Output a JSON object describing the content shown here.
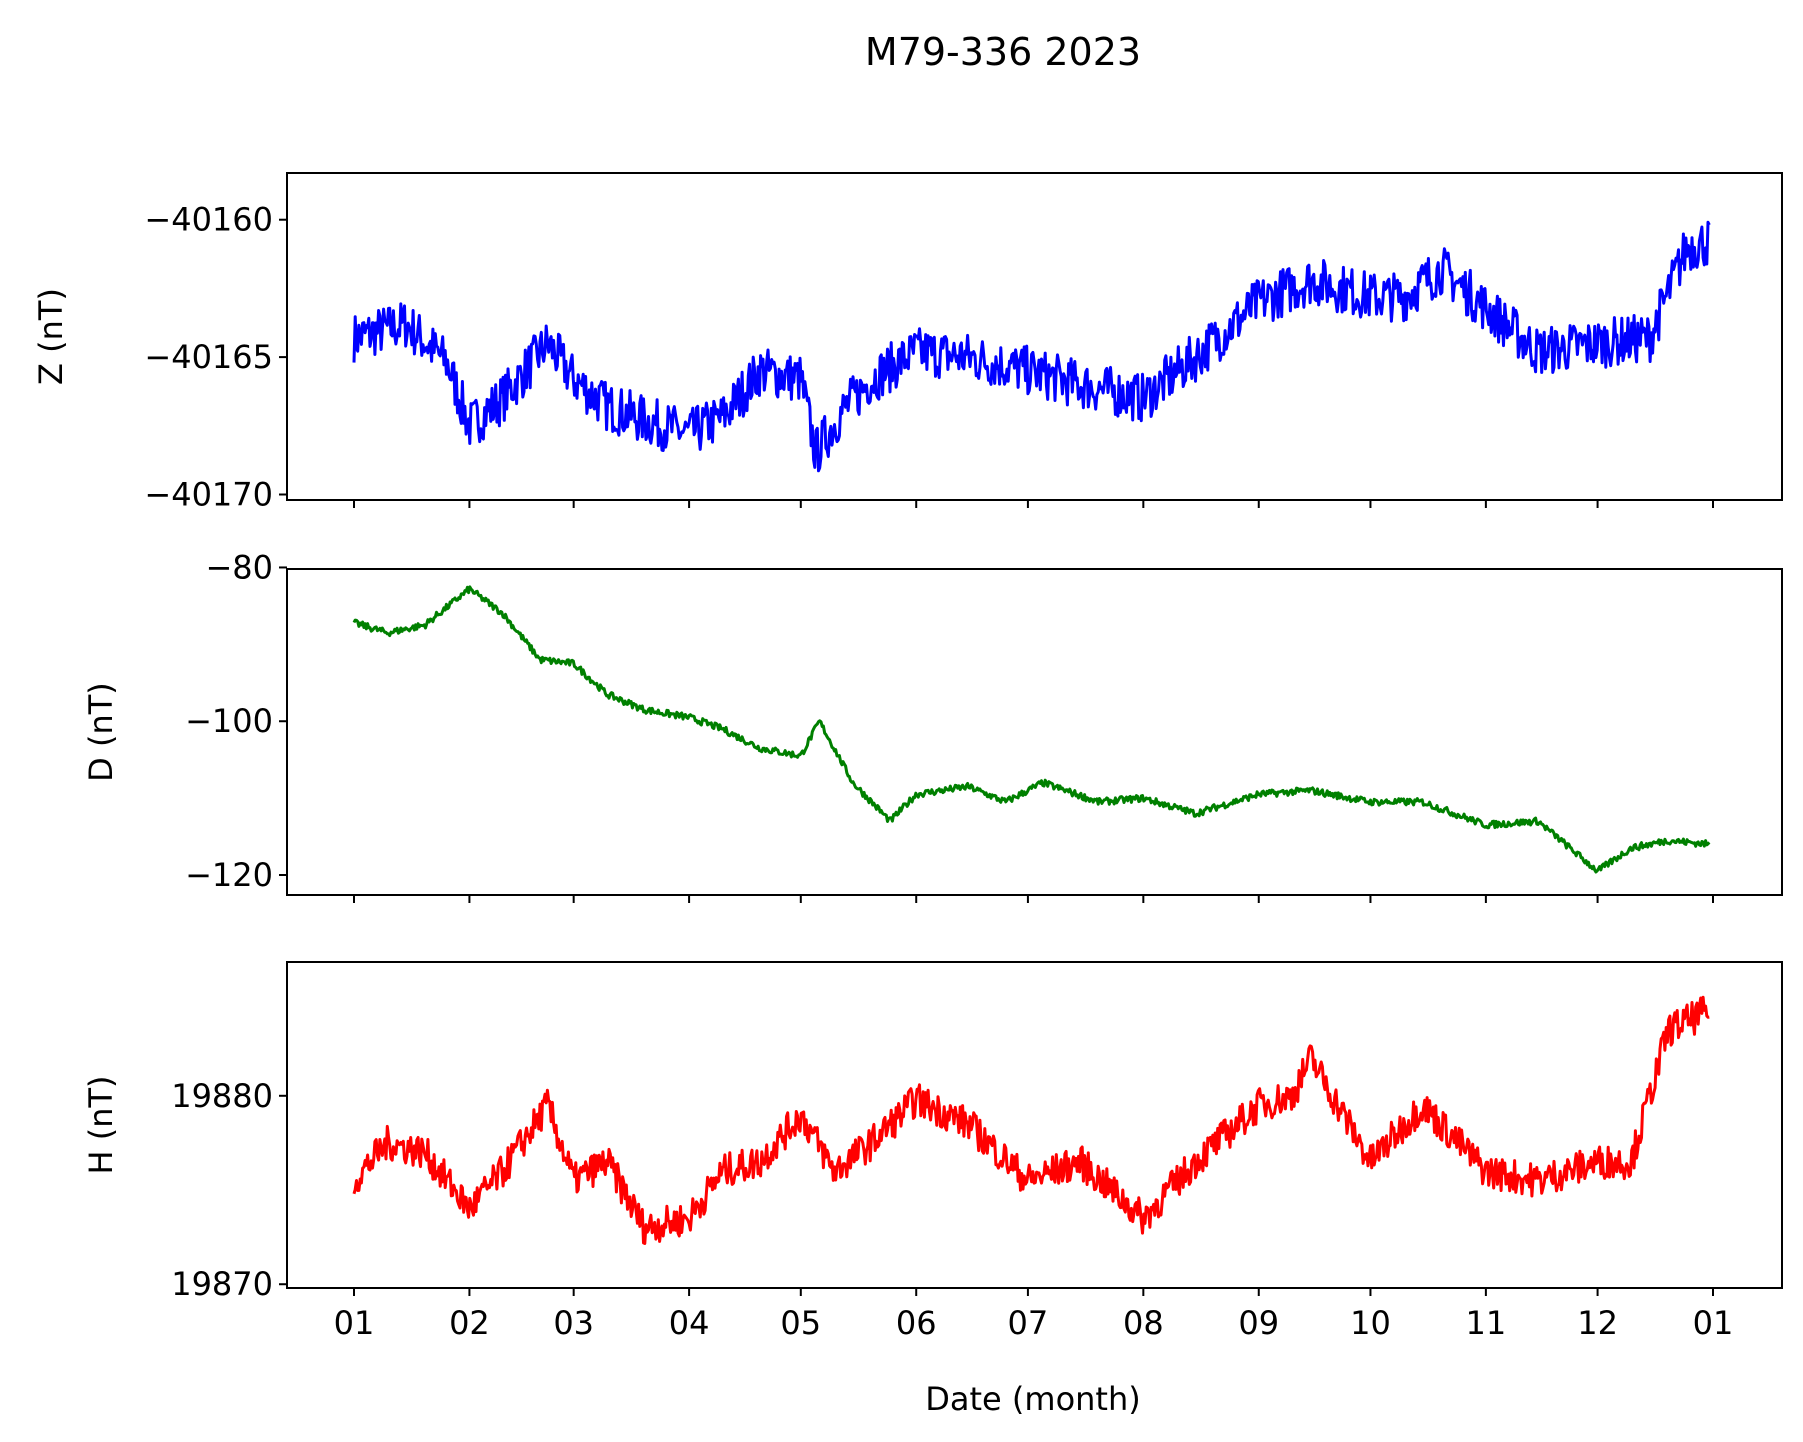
{
  "chart_data": {
    "title": "M79-336 2023",
    "type": "line",
    "shared_x": {
      "label": "Date (month)",
      "range": [
        "2023-01-01",
        "2024-01-01"
      ],
      "tick_values": [
        "2023-01-01",
        "2023-02-01",
        "2023-03-01",
        "2023-04-01",
        "2023-05-01",
        "2023-06-01",
        "2023-07-01",
        "2023-08-01",
        "2023-09-01",
        "2023-10-01",
        "2023-11-01",
        "2023-12-01",
        "2024-01-01"
      ],
      "tick_labels": [
        "01",
        "02",
        "03",
        "04",
        "05",
        "06",
        "07",
        "08",
        "09",
        "10",
        "11",
        "12",
        "01"
      ]
    },
    "panels": [
      {
        "id": "Z",
        "ylabel": "Z (nT)",
        "color": "#0000ff",
        "ylim": [
          -40170.2,
          -40158.3
        ],
        "yticks": [
          -40160,
          -40165,
          -40170
        ],
        "ytick_labels": [
          "−40160",
          "−40165",
          "−40170"
        ],
        "noise": 0.9,
        "x": [
          "2023-01-01",
          "2023-01-15",
          "2023-01-26",
          "2023-02-01",
          "2023-02-10",
          "2023-02-22",
          "2023-03-01",
          "2023-03-10",
          "2023-03-20",
          "2023-04-01",
          "2023-04-10",
          "2023-04-20",
          "2023-05-01",
          "2023-05-05",
          "2023-05-12",
          "2023-05-20",
          "2023-06-01",
          "2023-06-15",
          "2023-07-01",
          "2023-07-15",
          "2023-08-01",
          "2023-08-15",
          "2023-09-01",
          "2023-09-15",
          "2023-10-01",
          "2023-10-10",
          "2023-10-20",
          "2023-11-01",
          "2023-11-15",
          "2023-12-01",
          "2023-12-15",
          "2023-12-25",
          "2023-12-31"
        ],
        "y": [
          -40164.3,
          -40163.8,
          -40165.2,
          -40167.5,
          -40166.5,
          -40164.5,
          -40165.8,
          -40166.8,
          -40167.3,
          -40167.8,
          -40167.2,
          -40165.5,
          -40165.8,
          -40168.5,
          -40167.0,
          -40165.8,
          -40164.8,
          -40165.0,
          -40165.5,
          -40166.0,
          -40166.5,
          -40165.0,
          -40163.0,
          -40162.2,
          -40162.8,
          -40162.8,
          -40161.8,
          -40163.2,
          -40164.8,
          -40164.5,
          -40164.3,
          -40161.0,
          -40160.8
        ]
      },
      {
        "id": "D",
        "ylabel": "D (nT)",
        "color": "#008000",
        "ylim": [
          -122.6,
          -80.2
        ],
        "yticks": [
          -80,
          -100,
          -120
        ],
        "ytick_labels": [
          "−80",
          "−100",
          "−120"
        ],
        "noise": 0.45,
        "x": [
          "2023-01-01",
          "2023-01-10",
          "2023-01-20",
          "2023-02-01",
          "2023-02-10",
          "2023-02-20",
          "2023-03-01",
          "2023-03-10",
          "2023-03-20",
          "2023-04-01",
          "2023-04-10",
          "2023-04-20",
          "2023-05-01",
          "2023-05-06",
          "2023-05-15",
          "2023-05-25",
          "2023-06-01",
          "2023-06-15",
          "2023-06-25",
          "2023-07-05",
          "2023-07-20",
          "2023-08-01",
          "2023-08-15",
          "2023-09-01",
          "2023-09-15",
          "2023-10-01",
          "2023-10-15",
          "2023-11-01",
          "2023-11-15",
          "2023-12-01",
          "2023-12-10",
          "2023-12-20",
          "2023-12-31"
        ],
        "y": [
          -87.2,
          -88.5,
          -87.5,
          -82.8,
          -86.0,
          -92.0,
          -92.5,
          -96.5,
          -98.5,
          -99.5,
          -101.0,
          -103.5,
          -104.5,
          -100.0,
          -108.0,
          -113.0,
          -109.5,
          -108.5,
          -110.5,
          -108.0,
          -110.5,
          -110.0,
          -112.0,
          -109.5,
          -109.0,
          -110.5,
          -110.5,
          -113.5,
          -113.0,
          -119.5,
          -116.5,
          -115.5,
          -116.0
        ]
      },
      {
        "id": "H",
        "ylabel": "H (nT)",
        "color": "#ff0000",
        "ylim": [
          19869.8,
          19887.1
        ],
        "yticks": [
          19870,
          19880
        ],
        "ytick_labels": [
          "19870",
          "19880"
        ],
        "noise": 0.9,
        "x": [
          "2023-01-01",
          "2023-01-10",
          "2023-01-20",
          "2023-02-01",
          "2023-02-10",
          "2023-02-22",
          "2023-03-01",
          "2023-03-10",
          "2023-03-20",
          "2023-04-01",
          "2023-04-10",
          "2023-04-20",
          "2023-05-01",
          "2023-05-10",
          "2023-05-20",
          "2023-06-01",
          "2023-06-15",
          "2023-07-01",
          "2023-07-15",
          "2023-08-01",
          "2023-08-15",
          "2023-09-01",
          "2023-09-10",
          "2023-09-15",
          "2023-10-01",
          "2023-10-15",
          "2023-11-01",
          "2023-11-15",
          "2023-12-01",
          "2023-12-10",
          "2023-12-20",
          "2023-12-31"
        ],
        "y": [
          19875.5,
          19877.5,
          19877.0,
          19874.0,
          19876.0,
          19879.5,
          19875.5,
          19876.5,
          19873.0,
          19873.5,
          19876.0,
          19876.5,
          19879.0,
          19876.0,
          19877.5,
          19879.8,
          19878.5,
          19875.5,
          19876.5,
          19873.5,
          19876.5,
          19879.5,
          19880.0,
          19882.0,
          19876.5,
          19879.5,
          19876.0,
          19875.5,
          19876.5,
          19876.5,
          19883.5,
          19884.5
        ]
      }
    ]
  }
}
